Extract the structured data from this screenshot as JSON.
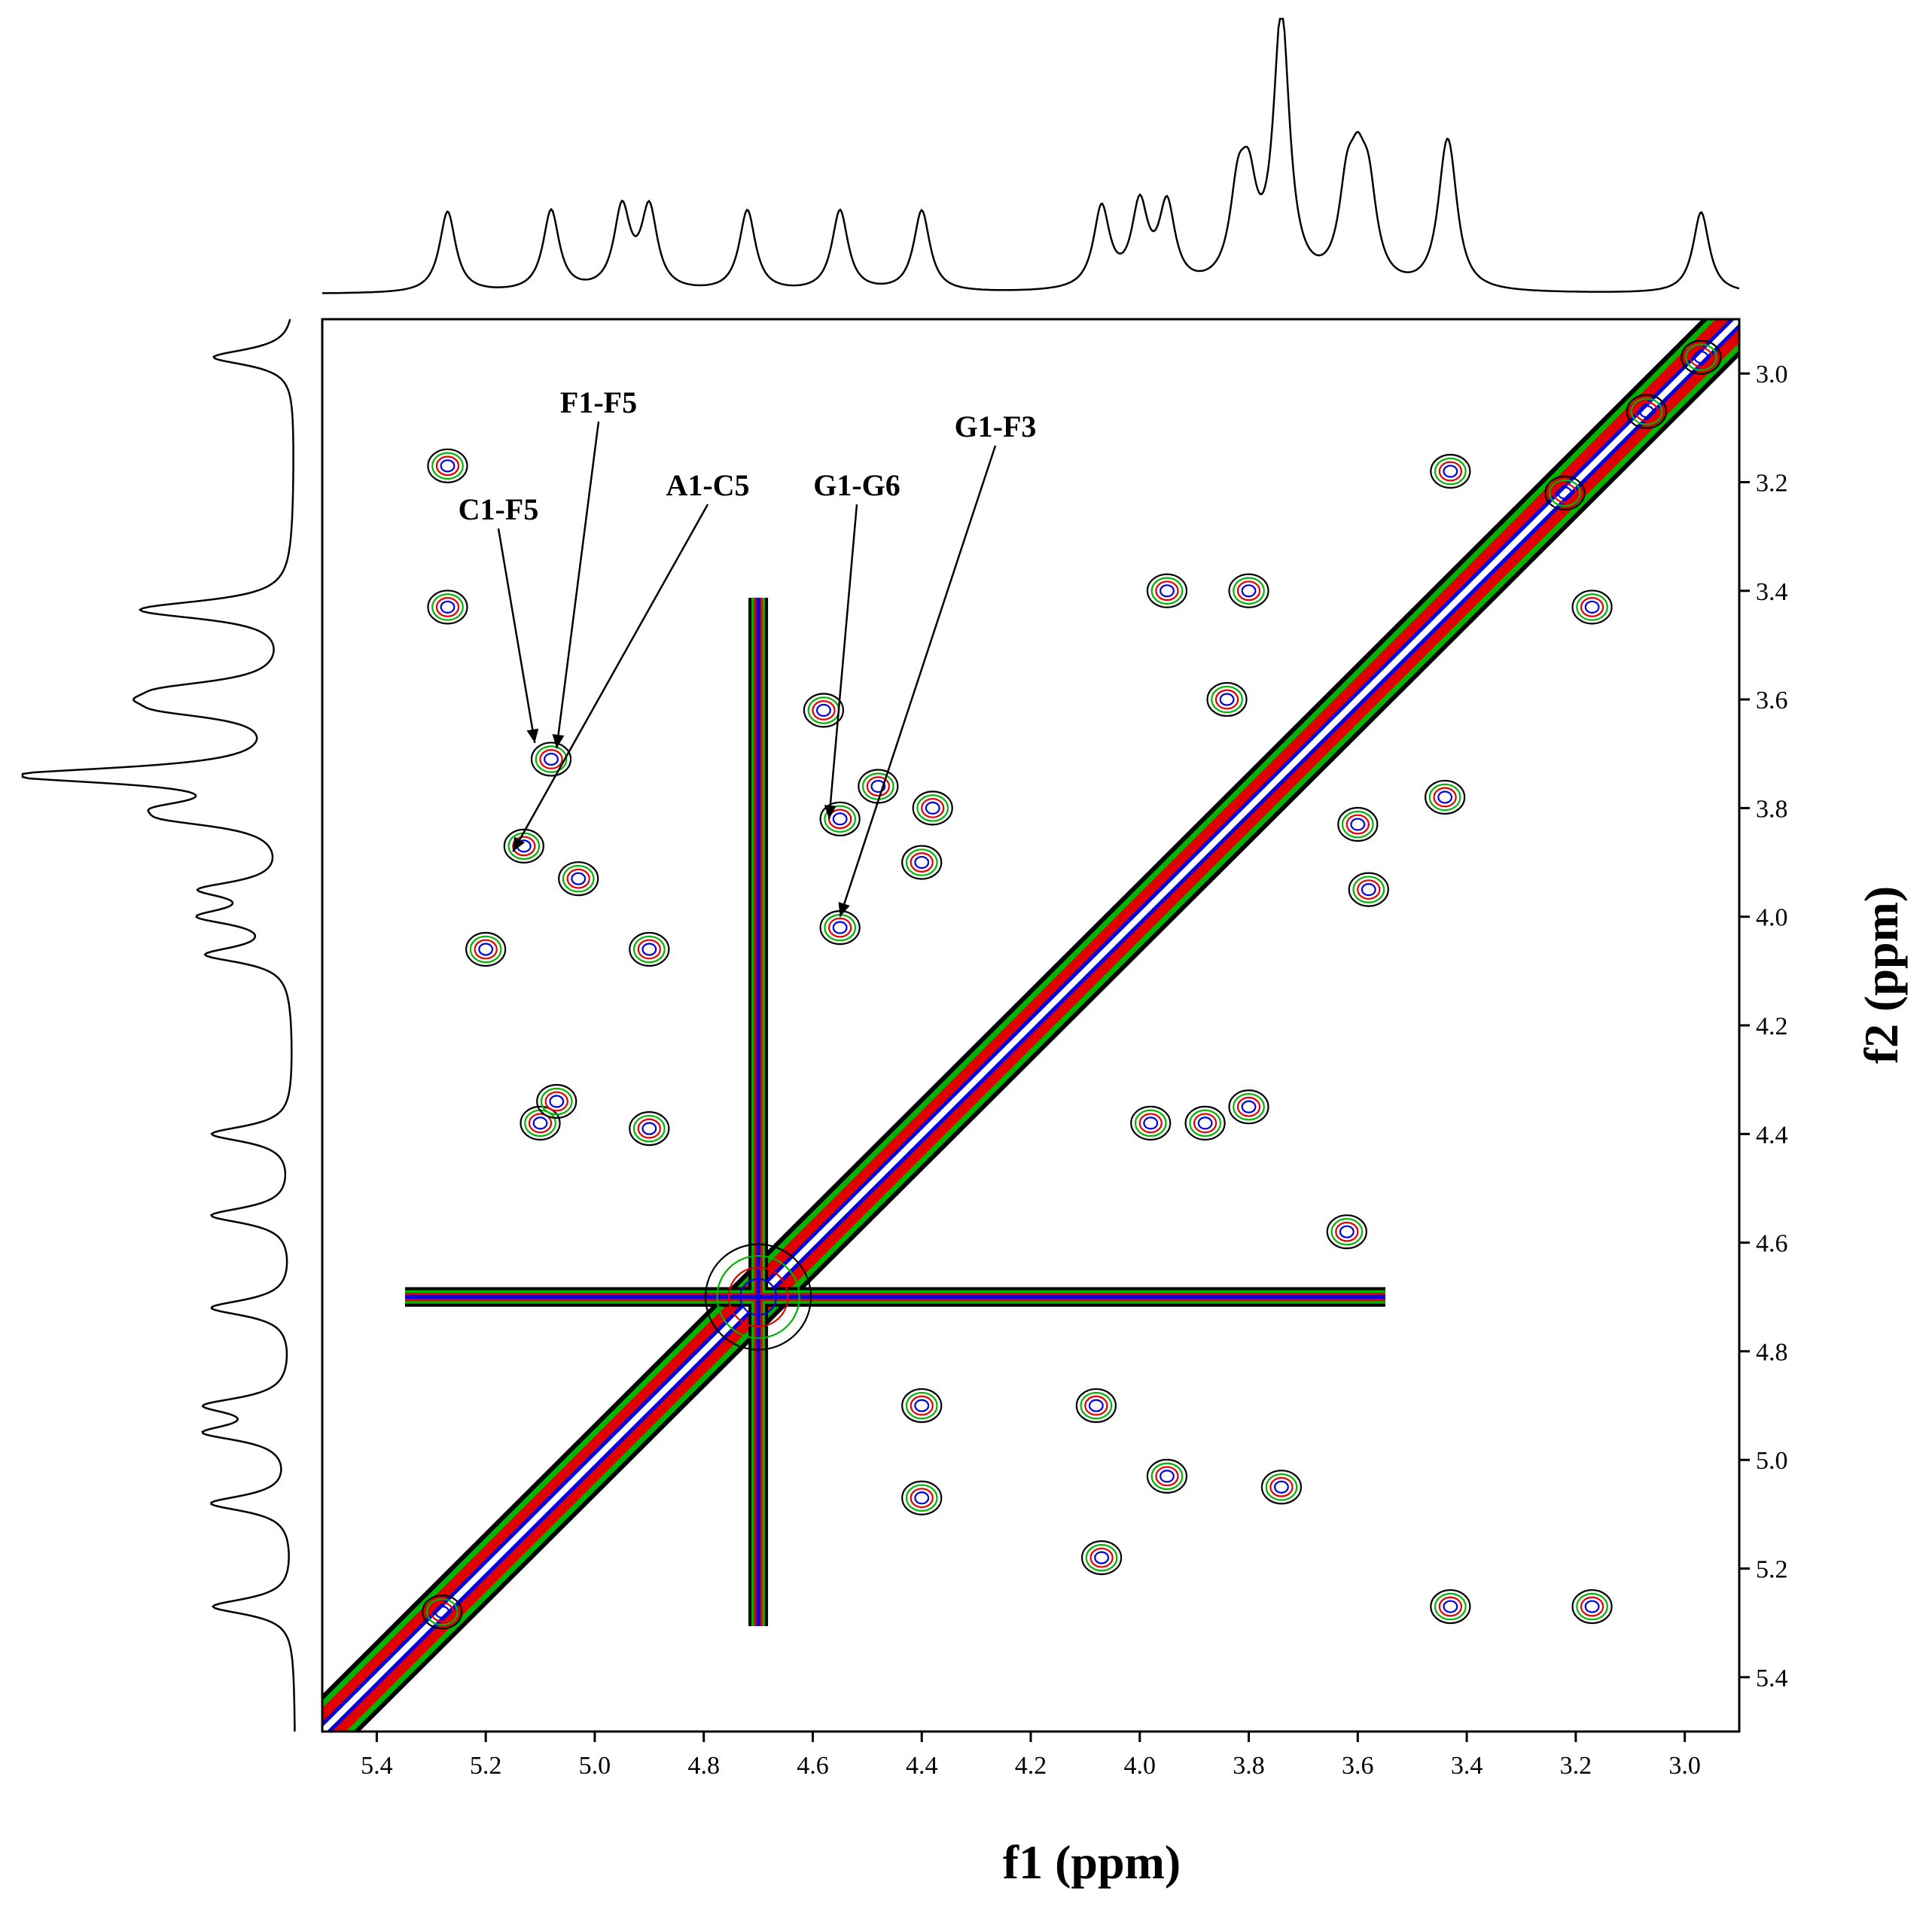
{
  "chart_data": {
    "type": "contour",
    "xlabel": "f1 (ppm)",
    "ylabel": "f2 (ppm)",
    "x_axis_reversed": true,
    "y_axis_reversed": true,
    "xlim": [
      5.5,
      2.9
    ],
    "ylim": [
      2.9,
      5.5
    ],
    "x_ticks": [
      "5.4",
      "5.2",
      "5.0",
      "4.8",
      "4.6",
      "4.4",
      "4.2",
      "4.0",
      "3.8",
      "3.6",
      "3.4",
      "3.2",
      "3.0"
    ],
    "y_ticks": [
      "3.0",
      "3.2",
      "3.4",
      "3.6",
      "3.8",
      "4.0",
      "4.2",
      "4.4",
      "4.6",
      "4.8",
      "5.0",
      "5.2",
      "5.4"
    ],
    "contour_level_colors": [
      "#000000",
      "#00b400",
      "#e00000",
      "#0000e0"
    ],
    "diagonal": {
      "from": [
        5.5,
        5.5
      ],
      "to": [
        2.9,
        2.9
      ]
    },
    "solvent_peak_ppm": 4.7,
    "projection_1d_peaks_ppm": [
      5.27,
      5.08,
      4.95,
      4.9,
      4.72,
      4.55,
      4.4,
      4.07,
      4.0,
      3.95,
      3.82,
      3.8,
      3.74,
      3.62,
      3.6,
      3.58,
      3.44,
      3.43,
      2.97
    ],
    "cross_peaks": [
      {
        "f1": 5.08,
        "f2": 3.71
      },
      {
        "f1": 5.13,
        "f2": 3.87
      },
      {
        "f1": 5.03,
        "f2": 3.93
      },
      {
        "f1": 4.9,
        "f2": 4.06
      },
      {
        "f1": 5.2,
        "f2": 4.06
      },
      {
        "f1": 4.9,
        "f2": 4.39
      },
      {
        "f1": 5.1,
        "f2": 4.38
      },
      {
        "f1": 5.07,
        "f2": 4.34
      },
      {
        "f1": 5.27,
        "f2": 3.43
      },
      {
        "f1": 4.55,
        "f2": 4.02
      },
      {
        "f1": 4.55,
        "f2": 3.82
      },
      {
        "f1": 4.58,
        "f2": 3.62
      },
      {
        "f1": 4.4,
        "f2": 3.9
      },
      {
        "f1": 4.38,
        "f2": 3.8
      },
      {
        "f1": 4.48,
        "f2": 3.76
      },
      {
        "f1": 4.4,
        "f2": 4.9
      },
      {
        "f1": 4.4,
        "f2": 5.07
      },
      {
        "f1": 4.08,
        "f2": 4.9
      },
      {
        "f1": 4.07,
        "f2": 5.18
      },
      {
        "f1": 3.74,
        "f2": 5.05
      },
      {
        "f1": 3.95,
        "f2": 5.03
      },
      {
        "f1": 3.98,
        "f2": 4.38
      },
      {
        "f1": 3.88,
        "f2": 4.38
      },
      {
        "f1": 3.8,
        "f2": 4.35
      },
      {
        "f1": 3.62,
        "f2": 4.58
      },
      {
        "f1": 3.95,
        "f2": 3.4
      },
      {
        "f1": 3.8,
        "f2": 3.4
      },
      {
        "f1": 3.84,
        "f2": 3.6
      },
      {
        "f1": 3.6,
        "f2": 3.83
      },
      {
        "f1": 3.44,
        "f2": 3.78
      },
      {
        "f1": 3.58,
        "f2": 3.95
      },
      {
        "f1": 3.43,
        "f2": 5.27
      },
      {
        "f1": 3.43,
        "f2": 3.18
      },
      {
        "f1": 3.17,
        "f2": 3.43
      },
      {
        "f1": 3.17,
        "f2": 5.27
      },
      {
        "f1": 3.07,
        "f2": 3.07
      },
      {
        "f1": 2.97,
        "f2": 2.97
      },
      {
        "f1": 3.22,
        "f2": 3.22
      },
      {
        "f1": 5.28,
        "f2": 5.28
      },
      {
        "f1": 5.27,
        "f2": 3.17
      }
    ],
    "annotations": [
      {
        "label": "F1-F5",
        "target_f1": 5.07,
        "target_f2": 3.69
      },
      {
        "label": "C1-F5",
        "target_f1": 5.11,
        "target_f2": 3.68
      },
      {
        "label": "A1-C5",
        "target_f1": 5.15,
        "target_f2": 3.88
      },
      {
        "label": "G1-G6",
        "target_f1": 4.57,
        "target_f2": 3.82
      },
      {
        "label": "G1-F3",
        "target_f1": 4.55,
        "target_f2": 4.0
      }
    ]
  }
}
